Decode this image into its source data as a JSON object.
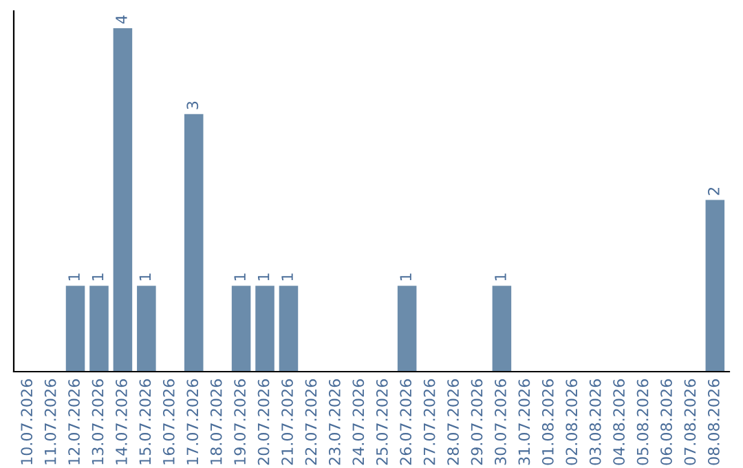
{
  "chart_data": {
    "type": "bar",
    "categories": [
      "10.07.2026",
      "11.07.2026",
      "12.07.2026",
      "13.07.2026",
      "14.07.2026",
      "15.07.2026",
      "16.07.2026",
      "17.07.2026",
      "18.07.2026",
      "19.07.2026",
      "20.07.2026",
      "21.07.2026",
      "22.07.2026",
      "23.07.2026",
      "24.07.2026",
      "25.07.2026",
      "26.07.2026",
      "27.07.2026",
      "28.07.2026",
      "29.07.2026",
      "30.07.2026",
      "31.07.2026",
      "01.08.2026",
      "02.08.2026",
      "03.08.2026",
      "04.08.2026",
      "05.08.2026",
      "06.08.2026",
      "07.08.2026",
      "08.08.2026"
    ],
    "values": [
      0,
      0,
      1,
      1,
      4,
      1,
      0,
      3,
      0,
      1,
      1,
      1,
      0,
      0,
      0,
      0,
      1,
      0,
      0,
      0,
      1,
      0,
      0,
      0,
      0,
      0,
      0,
      0,
      0,
      2
    ],
    "value_labels": [
      null,
      null,
      "1",
      "1",
      "4",
      "1",
      null,
      "3",
      null,
      "1",
      "1",
      "1",
      null,
      null,
      null,
      null,
      "1",
      null,
      null,
      null,
      "1",
      null,
      null,
      null,
      null,
      null,
      null,
      null,
      null,
      "2"
    ],
    "color": "#6b8cab",
    "ylim": [
      0,
      4.2
    ],
    "tick_labels": "x",
    "grid": false
  }
}
